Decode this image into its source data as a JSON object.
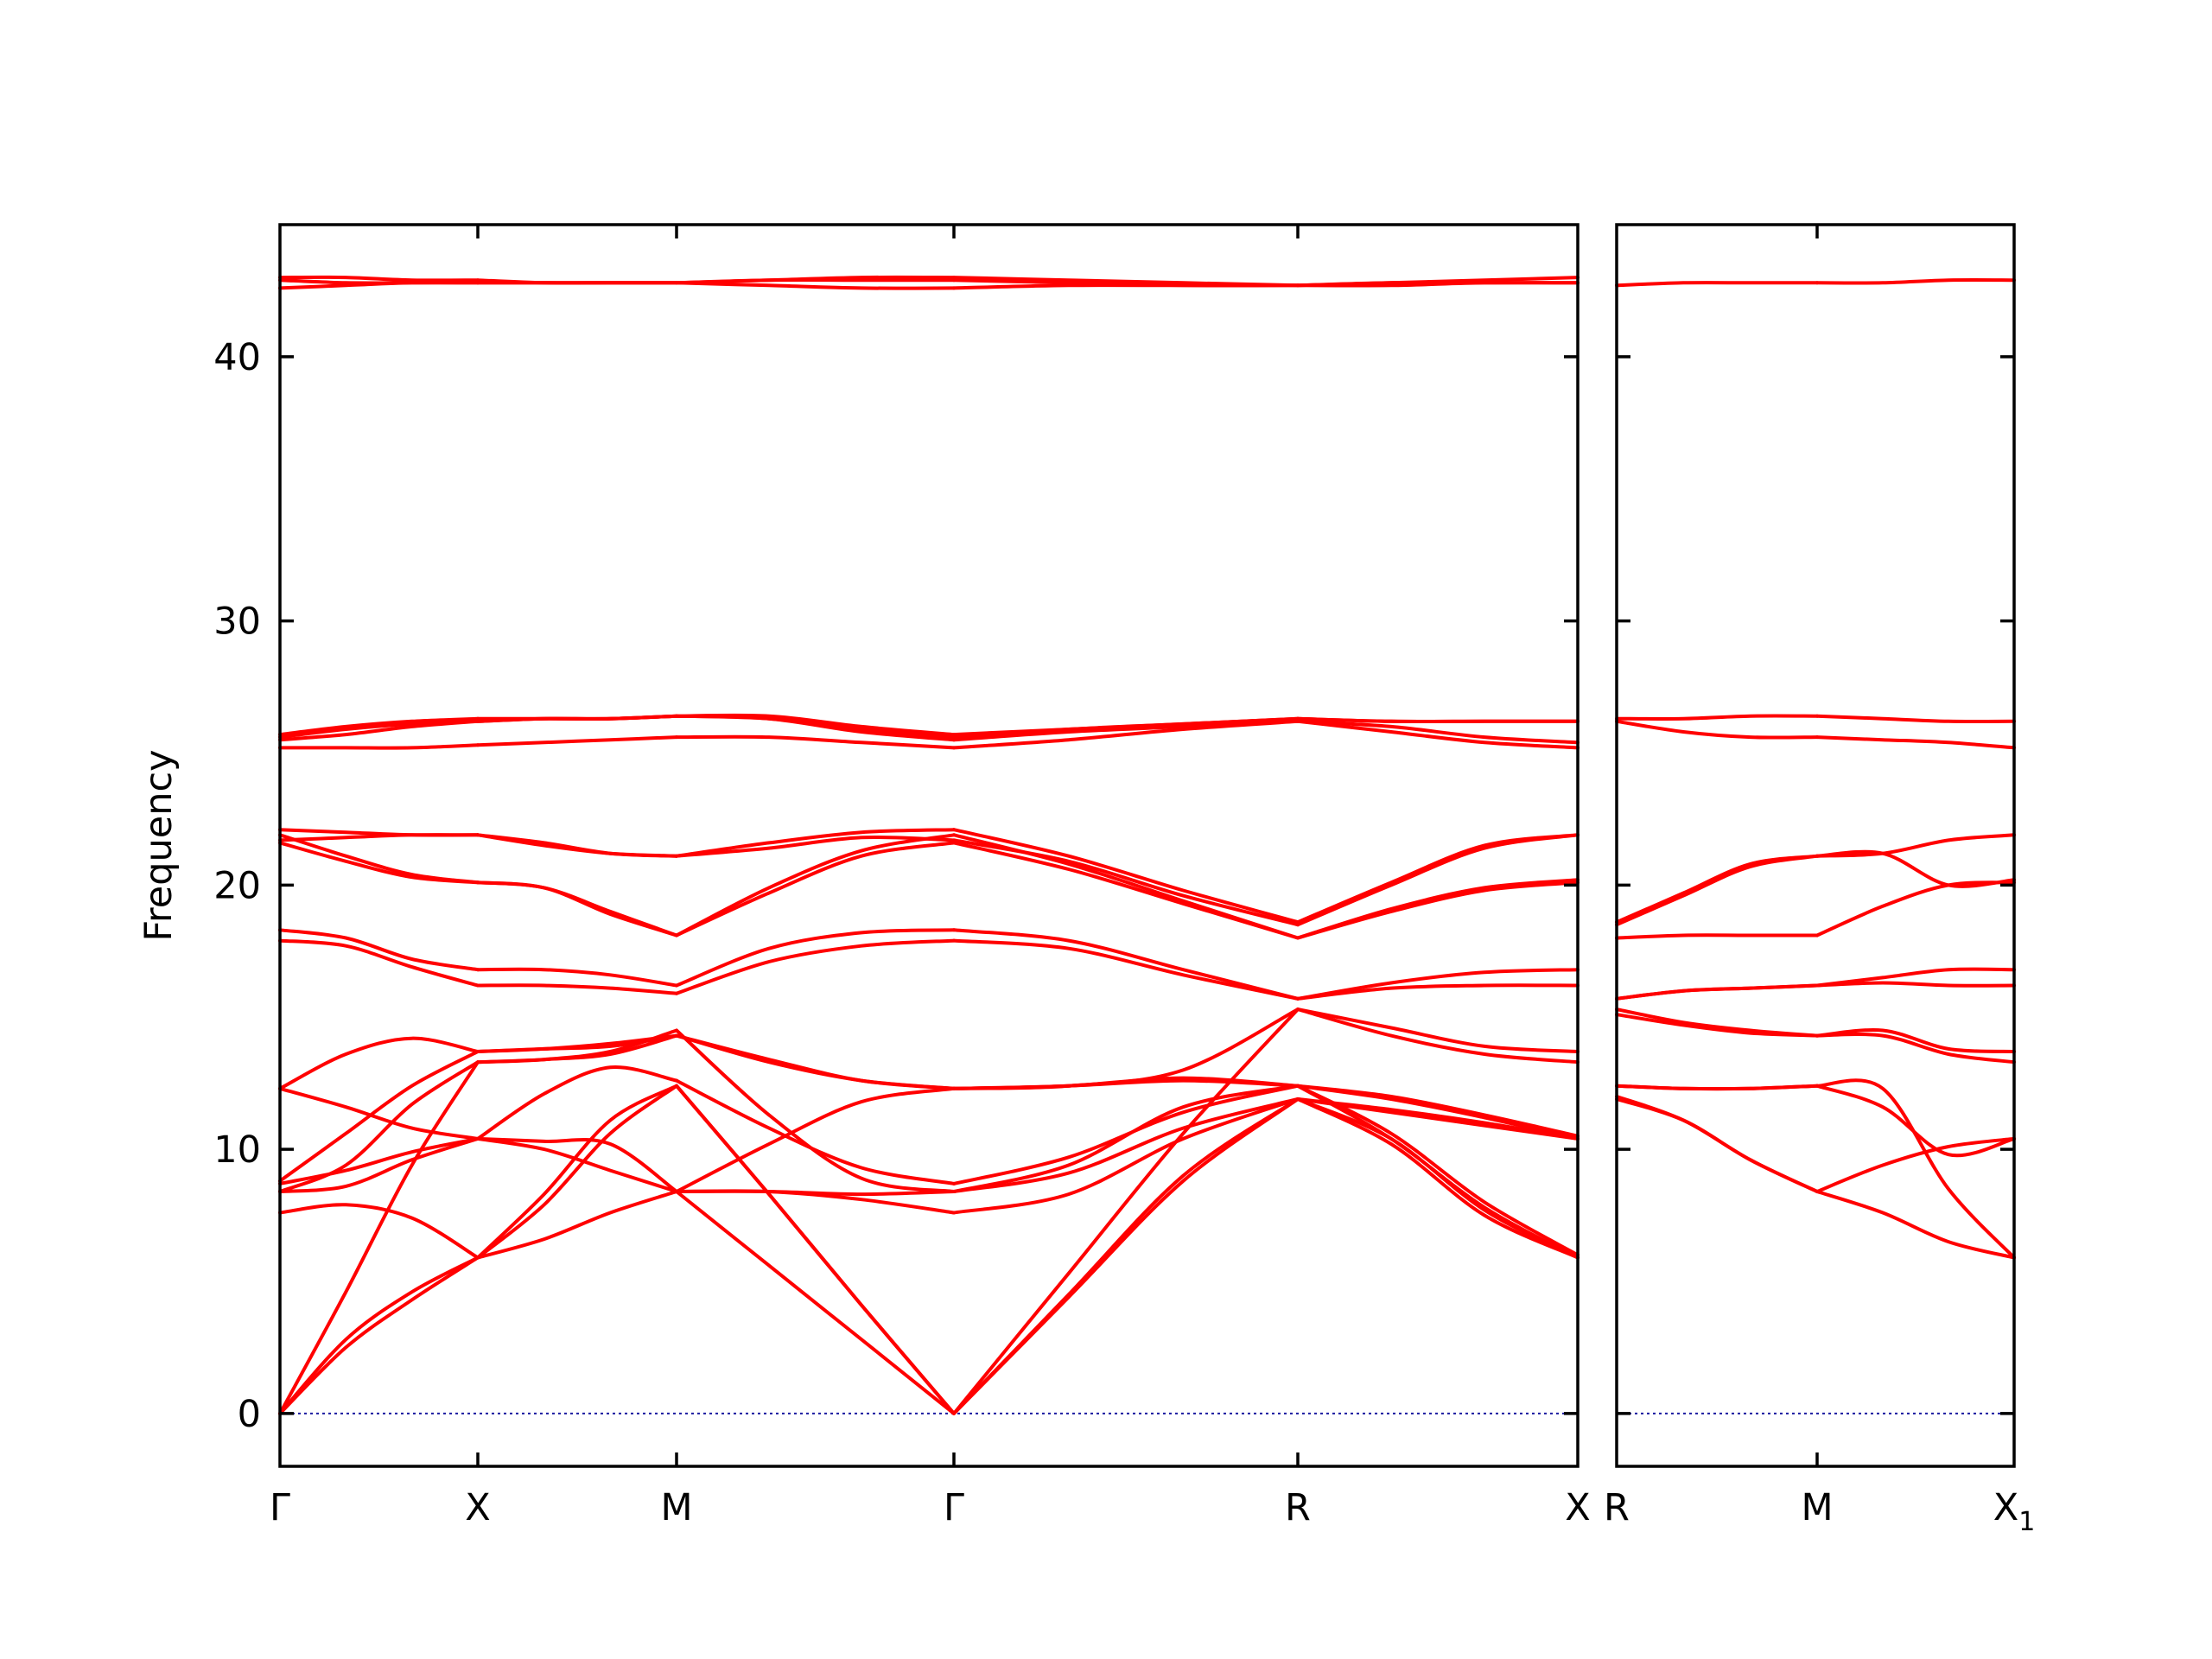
{
  "chart_data": {
    "type": "line",
    "title": "",
    "xlabel": "",
    "ylabel": "Frequency",
    "ylim": [
      -2,
      45
    ],
    "yticks": [
      0,
      10,
      20,
      30,
      40
    ],
    "colors": {
      "bands": "#ff0000",
      "zero_line": "#1a1aa0",
      "axes": "#000000"
    },
    "panels": [
      {
        "xlabels": [
          {
            "text": "Γ",
            "sub": ""
          },
          {
            "text": "X",
            "sub": ""
          },
          {
            "text": "M",
            "sub": ""
          },
          {
            "text": "Γ",
            "sub": ""
          },
          {
            "text": "R",
            "sub": ""
          },
          {
            "text": "X",
            "sub": ""
          }
        ],
        "segments": [
          {
            "from": "Γ",
            "to": "X",
            "bands": [
              [
                0,
                2.5,
                4.3,
                5.9
              ],
              [
                0,
                2.8,
                4.6,
                5.9
              ],
              [
                0,
                4.6,
                9.4,
                13.3
              ],
              [
                7.6,
                7.9,
                7.4,
                5.9
              ],
              [
                8.4,
                8.6,
                9.6,
                10.4
              ],
              [
                8.7,
                9.2,
                9.9,
                10.4
              ],
              [
                8.4,
                9.4,
                11.7,
                13.3
              ],
              [
                8.8,
                10.6,
                12.4,
                13.7
              ],
              [
                12.3,
                11.6,
                10.8,
                10.4
              ],
              [
                12.3,
                13.6,
                14.2,
                13.7
              ],
              [
                17.9,
                17.7,
                16.9,
                16.2
              ],
              [
                18.3,
                18.0,
                17.2,
                16.8
              ],
              [
                21.6,
                20.9,
                20.3,
                20.1
              ],
              [
                21.9,
                21.1,
                20.4,
                20.1
              ],
              [
                21.7,
                21.8,
                21.9,
                21.9
              ],
              [
                22.1,
                22.0,
                21.9,
                21.9
              ],
              [
                25.2,
                25.2,
                25.2,
                25.3
              ],
              [
                25.5,
                25.7,
                26.0,
                26.2
              ],
              [
                25.6,
                25.9,
                26.1,
                26.2
              ],
              [
                25.7,
                26.0,
                26.2,
                26.3
              ],
              [
                42.6,
                42.7,
                42.8,
                42.8
              ],
              [
                42.9,
                42.8,
                42.8,
                42.8
              ],
              [
                43.0,
                43.0,
                42.9,
                42.9
              ]
            ]
          },
          {
            "from": "X",
            "to": "M",
            "bands": [
              [
                5.9,
                8.3,
                11.1,
                12.4
              ],
              [
                5.9,
                6.6,
                7.6,
                8.4
              ],
              [
                13.3,
                13.4,
                13.6,
                14.3
              ],
              [
                5.9,
                7.9,
                10.6,
                12.4
              ],
              [
                10.4,
                10.0,
                9.2,
                8.4
              ],
              [
                10.4,
                12.1,
                13.1,
                12.6
              ],
              [
                13.3,
                13.4,
                13.7,
                14.5
              ],
              [
                13.7,
                13.8,
                13.9,
                14.3
              ],
              [
                10.4,
                10.3,
                10.2,
                8.4
              ],
              [
                13.7,
                13.8,
                14.0,
                14.3
              ],
              [
                16.2,
                16.2,
                16.1,
                15.9
              ],
              [
                16.8,
                16.8,
                16.6,
                16.2
              ],
              [
                20.1,
                19.9,
                18.9,
                18.1
              ],
              [
                20.1,
                19.9,
                19.0,
                18.1
              ],
              [
                21.9,
                21.5,
                21.2,
                21.1
              ],
              [
                21.9,
                21.6,
                21.2,
                21.1
              ],
              [
                25.3,
                25.4,
                25.5,
                25.6
              ],
              [
                26.2,
                26.3,
                26.3,
                26.4
              ],
              [
                26.2,
                26.3,
                26.3,
                26.4
              ],
              [
                26.3,
                26.3,
                26.3,
                26.4
              ],
              [
                42.8,
                42.8,
                42.8,
                42.8
              ],
              [
                42.8,
                42.8,
                42.8,
                42.8
              ],
              [
                42.9,
                42.8,
                42.8,
                42.8
              ]
            ]
          },
          {
            "from": "M",
            "to": "Γ",
            "bands": [
              [
                8.4,
                5.6,
                2.8,
                0
              ],
              [
                12.4,
                8.3,
                4.1,
                0
              ],
              [
                12.4,
                8.3,
                4.1,
                0
              ],
              [
                8.4,
                8.4,
                8.1,
                7.6
              ],
              [
                8.4,
                8.4,
                8.3,
                8.4
              ],
              [
                12.6,
                10.8,
                9.3,
                8.7
              ],
              [
                14.5,
                11.3,
                8.9,
                8.4
              ],
              [
                14.3,
                13.4,
                12.6,
                12.3
              ],
              [
                8.4,
                10.2,
                11.8,
                12.3
              ],
              [
                14.3,
                13.3,
                12.6,
                12.3
              ],
              [
                15.9,
                17.1,
                17.7,
                17.9
              ],
              [
                16.2,
                17.6,
                18.2,
                18.3
              ],
              [
                18.1,
                19.7,
                21.1,
                21.6
              ],
              [
                18.1,
                19.9,
                21.3,
                21.9
              ],
              [
                21.1,
                21.4,
                21.8,
                21.7
              ],
              [
                21.1,
                21.6,
                22.0,
                22.1
              ],
              [
                25.6,
                25.6,
                25.4,
                25.2
              ],
              [
                26.4,
                26.3,
                25.8,
                25.5
              ],
              [
                26.4,
                26.3,
                25.9,
                25.6
              ],
              [
                26.4,
                26.4,
                26.0,
                25.7
              ],
              [
                42.8,
                42.7,
                42.6,
                42.6
              ],
              [
                42.8,
                42.9,
                42.9,
                42.9
              ],
              [
                42.8,
                42.9,
                43.0,
                43.0
              ]
            ]
          },
          {
            "from": "Γ",
            "to": "R",
            "bands": [
              [
                0,
                4.4,
                8.8,
                11.9
              ],
              [
                0,
                4.5,
                9.0,
                11.9
              ],
              [
                0,
                5.3,
                10.6,
                15.3
              ],
              [
                7.6,
                8.3,
                10.4,
                11.9
              ],
              [
                8.4,
                9.1,
                10.8,
                11.9
              ],
              [
                8.7,
                9.7,
                11.4,
                12.4
              ],
              [
                8.4,
                9.4,
                11.6,
                12.4
              ],
              [
                12.3,
                12.4,
                13.0,
                15.3
              ],
              [
                12.3,
                12.4,
                12.7,
                12.4
              ],
              [
                12.3,
                12.4,
                12.6,
                12.4
              ],
              [
                17.9,
                17.6,
                16.6,
                15.7
              ],
              [
                18.3,
                17.9,
                16.8,
                15.7
              ],
              [
                21.6,
                20.6,
                19.3,
                18.0
              ],
              [
                21.9,
                20.8,
                19.4,
                18.0
              ],
              [
                21.7,
                20.9,
                19.6,
                18.5
              ],
              [
                22.1,
                21.1,
                19.8,
                18.6
              ],
              [
                25.2,
                25.5,
                25.9,
                26.2
              ],
              [
                25.5,
                25.8,
                26.0,
                26.2
              ],
              [
                25.6,
                25.9,
                26.1,
                26.3
              ],
              [
                25.7,
                25.9,
                26.1,
                26.3
              ],
              [
                42.6,
                42.7,
                42.7,
                42.7
              ],
              [
                42.9,
                42.8,
                42.7,
                42.7
              ],
              [
                43.0,
                42.9,
                42.8,
                42.7
              ]
            ]
          },
          {
            "from": "R",
            "to": "X",
            "bands": [
              [
                11.9,
                10.2,
                7.5,
                5.9
              ],
              [
                11.9,
                10.4,
                7.7,
                5.9
              ],
              [
                15.3,
                14.3,
                13.6,
                13.3
              ],
              [
                11.9,
                11.4,
                10.9,
                10.4
              ],
              [
                11.9,
                11.5,
                11.0,
                10.4
              ],
              [
                12.4,
                11.9,
                11.2,
                10.4
              ],
              [
                12.4,
                12.0,
                11.3,
                10.5
              ],
              [
                15.3,
                14.6,
                13.9,
                13.7
              ],
              [
                12.4,
                10.4,
                7.8,
                5.9
              ],
              [
                12.4,
                10.6,
                8.0,
                6.0
              ],
              [
                15.7,
                16.3,
                16.7,
                16.8
              ],
              [
                15.7,
                16.1,
                16.2,
                16.2
              ],
              [
                18.0,
                19.0,
                19.8,
                20.1
              ],
              [
                18.0,
                19.1,
                19.9,
                20.2
              ],
              [
                18.5,
                20.0,
                21.4,
                21.9
              ],
              [
                18.6,
                20.1,
                21.5,
                21.9
              ],
              [
                26.2,
                25.8,
                25.4,
                25.2
              ],
              [
                26.2,
                26.0,
                25.6,
                25.4
              ],
              [
                26.3,
                26.2,
                26.2,
                26.2
              ],
              [
                26.3,
                26.2,
                26.2,
                26.2
              ],
              [
                42.7,
                42.7,
                42.8,
                42.8
              ],
              [
                42.7,
                42.8,
                42.8,
                42.8
              ],
              [
                42.7,
                42.8,
                42.9,
                43.0
              ]
            ]
          }
        ]
      },
      {
        "xlabels": [
          {
            "text": "R",
            "sub": ""
          },
          {
            "text": "M",
            "sub": ""
          },
          {
            "text": "X",
            "sub": "1"
          }
        ],
        "segments": [
          {
            "from": "R",
            "to": "M",
            "bands": [
              [
                11.9,
                11.1,
                9.6,
                8.4
              ],
              [
                12.0,
                11.1,
                9.6,
                8.4
              ],
              [
                12.4,
                12.3,
                12.3,
                12.4
              ],
              [
                12.4,
                12.3,
                12.3,
                12.4
              ],
              [
                15.3,
                14.8,
                14.5,
                14.3
              ],
              [
                15.1,
                14.7,
                14.4,
                14.3
              ],
              [
                15.7,
                16.0,
                16.1,
                16.2
              ],
              [
                15.7,
                16.0,
                16.1,
                16.2
              ],
              [
                18.0,
                18.1,
                18.1,
                18.1
              ],
              [
                18.6,
                19.7,
                20.8,
                21.1
              ],
              [
                18.5,
                19.6,
                20.7,
                21.1
              ],
              [
                26.2,
                25.8,
                25.6,
                25.6
              ],
              [
                26.3,
                26.3,
                26.4,
                26.4
              ],
              [
                42.7,
                42.8,
                42.8,
                42.8
              ]
            ]
          },
          {
            "from": "M",
            "to": "X1",
            "bands": [
              [
                8.4,
                9.4,
                10.1,
                10.4
              ],
              [
                8.4,
                7.6,
                6.5,
                5.9
              ],
              [
                12.4,
                11.6,
                9.8,
                10.4
              ],
              [
                12.4,
                12.3,
                8.5,
                5.9
              ],
              [
                14.3,
                14.3,
                13.6,
                13.3
              ],
              [
                14.3,
                14.5,
                13.8,
                13.7
              ],
              [
                16.2,
                16.3,
                16.2,
                16.2
              ],
              [
                16.2,
                16.5,
                16.8,
                16.8
              ],
              [
                18.1,
                19.2,
                20.0,
                20.1
              ],
              [
                21.1,
                21.2,
                21.7,
                21.9
              ],
              [
                21.1,
                21.2,
                20.0,
                20.2
              ],
              [
                25.6,
                25.5,
                25.4,
                25.2
              ],
              [
                26.4,
                26.3,
                26.2,
                26.2
              ],
              [
                42.8,
                42.8,
                42.9,
                42.9
              ]
            ]
          }
        ]
      }
    ]
  }
}
